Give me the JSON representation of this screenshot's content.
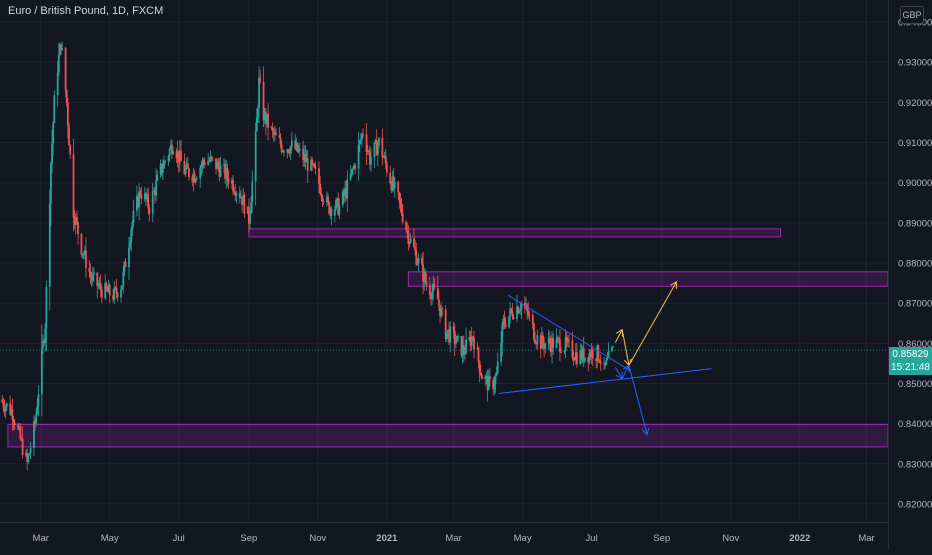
{
  "header": {
    "title": "Euro / British Pound, 1D, FXCM",
    "currency_label": "GBP"
  },
  "last_price": {
    "value": "0.85829",
    "countdown": "15:21:48"
  },
  "colors": {
    "background": "#131722",
    "grid": "#1e222d",
    "up": "#26a69a",
    "down": "#ef5350",
    "zone_border": "#9c27b0",
    "zone_fill": "rgba(156,39,176,0.22)",
    "trendline": "#2962ff",
    "bull_arrow": "#e8c547",
    "bear_arrow": "#2962ff"
  },
  "chart_data": {
    "type": "candlestick",
    "title": "Euro / British Pound, 1D, FXCM",
    "xlabel": "",
    "ylabel": "",
    "y_axis_side": "right",
    "ylim": [
      0.8155,
      0.9455
    ],
    "xlim": [
      "2020-01-25",
      "2022-03-20"
    ],
    "grid": true,
    "y_ticks": [
      "0.82000",
      "0.83000",
      "0.84000",
      "0.85000",
      "0.86000",
      "0.87000",
      "0.88000",
      "0.89000",
      "0.90000",
      "0.91000",
      "0.92000",
      "0.93000",
      "0.94000"
    ],
    "x_ticks": [
      {
        "date": "2020-03-01",
        "label": "Mar"
      },
      {
        "date": "2020-05-01",
        "label": "May"
      },
      {
        "date": "2020-07-01",
        "label": "Jul"
      },
      {
        "date": "2020-09-01",
        "label": "Sep"
      },
      {
        "date": "2020-11-01",
        "label": "Nov"
      },
      {
        "date": "2021-01-01",
        "label": "2021",
        "bold": true
      },
      {
        "date": "2021-03-01",
        "label": "Mar"
      },
      {
        "date": "2021-05-01",
        "label": "May"
      },
      {
        "date": "2021-07-01",
        "label": "Jul"
      },
      {
        "date": "2021-09-01",
        "label": "Sep"
      },
      {
        "date": "2021-11-01",
        "label": "Nov"
      },
      {
        "date": "2022-01-01",
        "label": "2022",
        "bold": true
      },
      {
        "date": "2022-03-01",
        "label": "Mar"
      }
    ],
    "price_anchors": [
      [
        "2020-01-25",
        0.846
      ],
      [
        "2020-02-05",
        0.843
      ],
      [
        "2020-02-12",
        0.836
      ],
      [
        "2020-02-18",
        0.83
      ],
      [
        "2020-02-25",
        0.84
      ],
      [
        "2020-03-05",
        0.865
      ],
      [
        "2020-03-10",
        0.905
      ],
      [
        "2020-03-14",
        0.925
      ],
      [
        "2020-03-19",
        0.935
      ],
      [
        "2020-03-24",
        0.92
      ],
      [
        "2020-03-30",
        0.893
      ],
      [
        "2020-04-06",
        0.884
      ],
      [
        "2020-04-15",
        0.876
      ],
      [
        "2020-04-25",
        0.873
      ],
      [
        "2020-05-05",
        0.872
      ],
      [
        "2020-05-12",
        0.875
      ],
      [
        "2020-05-20",
        0.889
      ],
      [
        "2020-05-28",
        0.898
      ],
      [
        "2020-06-05",
        0.894
      ],
      [
        "2020-06-15",
        0.903
      ],
      [
        "2020-06-26",
        0.91
      ],
      [
        "2020-07-06",
        0.903
      ],
      [
        "2020-07-15",
        0.902
      ],
      [
        "2020-07-25",
        0.906
      ],
      [
        "2020-08-05",
        0.904
      ],
      [
        "2020-08-15",
        0.901
      ],
      [
        "2020-08-25",
        0.897
      ],
      [
        "2020-09-01",
        0.891
      ],
      [
        "2020-09-06",
        0.906
      ],
      [
        "2020-09-10",
        0.925
      ],
      [
        "2020-09-14",
        0.917
      ],
      [
        "2020-09-22",
        0.912
      ],
      [
        "2020-10-01",
        0.909
      ],
      [
        "2020-10-10",
        0.909
      ],
      [
        "2020-10-20",
        0.906
      ],
      [
        "2020-10-30",
        0.902
      ],
      [
        "2020-11-10",
        0.894
      ],
      [
        "2020-11-20",
        0.894
      ],
      [
        "2020-11-26",
        0.898
      ],
      [
        "2020-12-03",
        0.904
      ],
      [
        "2020-12-11",
        0.913
      ],
      [
        "2020-12-17",
        0.906
      ],
      [
        "2020-12-25",
        0.91
      ],
      [
        "2021-01-04",
        0.901
      ],
      [
        "2021-01-12",
        0.895
      ],
      [
        "2021-01-20",
        0.887
      ],
      [
        "2021-01-28",
        0.881
      ],
      [
        "2021-02-06",
        0.874
      ],
      [
        "2021-02-14",
        0.872
      ],
      [
        "2021-02-22",
        0.863
      ],
      [
        "2021-03-02",
        0.861
      ],
      [
        "2021-03-10",
        0.858
      ],
      [
        "2021-03-18",
        0.862
      ],
      [
        "2021-03-26",
        0.852
      ],
      [
        "2021-04-03",
        0.849
      ],
      [
        "2021-04-08",
        0.852
      ],
      [
        "2021-04-14",
        0.865
      ],
      [
        "2021-04-22",
        0.868
      ],
      [
        "2021-04-30",
        0.87
      ],
      [
        "2021-05-06",
        0.867
      ],
      [
        "2021-05-12",
        0.862
      ],
      [
        "2021-05-18",
        0.86
      ],
      [
        "2021-05-26",
        0.86
      ],
      [
        "2021-06-03",
        0.86
      ],
      [
        "2021-06-10",
        0.859
      ],
      [
        "2021-06-18",
        0.857
      ],
      [
        "2021-06-26",
        0.857
      ],
      [
        "2021-07-02",
        0.858
      ],
      [
        "2021-07-08",
        0.857
      ],
      [
        "2021-07-12",
        0.853
      ],
      [
        "2021-07-16",
        0.856
      ],
      [
        "2021-07-20",
        0.858
      ]
    ],
    "zones": [
      {
        "name": "resistance-zone-upper",
        "from": "2020-09-01",
        "to": "2021-12-15",
        "top": 0.8885,
        "bottom": 0.8865
      },
      {
        "name": "resistance-zone-mid",
        "from": "2021-01-20",
        "to": "2022-03-20",
        "top": 0.8778,
        "bottom": 0.8742
      },
      {
        "name": "support-zone-lower",
        "from": "2020-02-01",
        "to": "2022-03-20",
        "top": 0.8398,
        "bottom": 0.8342
      }
    ],
    "lines": [
      {
        "name": "descending-trendline",
        "from": [
          "2021-04-18",
          0.872
        ],
        "to": [
          "2021-08-04",
          0.8532
        ]
      },
      {
        "name": "ascending-trendline",
        "from": [
          "2021-04-10",
          0.8475
        ],
        "to": [
          "2021-10-15",
          0.8537
        ]
      }
    ],
    "arrows": [
      {
        "name": "bull-arrow-small",
        "color": "bull_arrow",
        "points": [
          [
            "2021-07-22",
            0.8602
          ],
          [
            "2021-07-28",
            0.8634
          ]
        ]
      },
      {
        "name": "bull-arrow-pullback",
        "color": "bull_arrow",
        "points": [
          [
            "2021-07-28",
            0.8634
          ],
          [
            "2021-08-03",
            0.8545
          ]
        ]
      },
      {
        "name": "bull-arrow-main",
        "color": "bull_arrow",
        "points": [
          [
            "2021-08-03",
            0.8545
          ],
          [
            "2021-09-14",
            0.8753
          ]
        ]
      },
      {
        "name": "bear-arrow-small",
        "color": "bear_arrow",
        "points": [
          [
            "2021-07-22",
            0.854
          ],
          [
            "2021-07-28",
            0.8512
          ]
        ]
      },
      {
        "name": "bear-arrow-pullback",
        "color": "bear_arrow",
        "points": [
          [
            "2021-07-28",
            0.8512
          ],
          [
            "2021-08-03",
            0.8545
          ]
        ]
      },
      {
        "name": "bear-arrow-main",
        "color": "bear_arrow",
        "points": [
          [
            "2021-08-03",
            0.8545
          ],
          [
            "2021-08-19",
            0.8373
          ]
        ]
      }
    ],
    "last_price_line": 0.85829
  }
}
